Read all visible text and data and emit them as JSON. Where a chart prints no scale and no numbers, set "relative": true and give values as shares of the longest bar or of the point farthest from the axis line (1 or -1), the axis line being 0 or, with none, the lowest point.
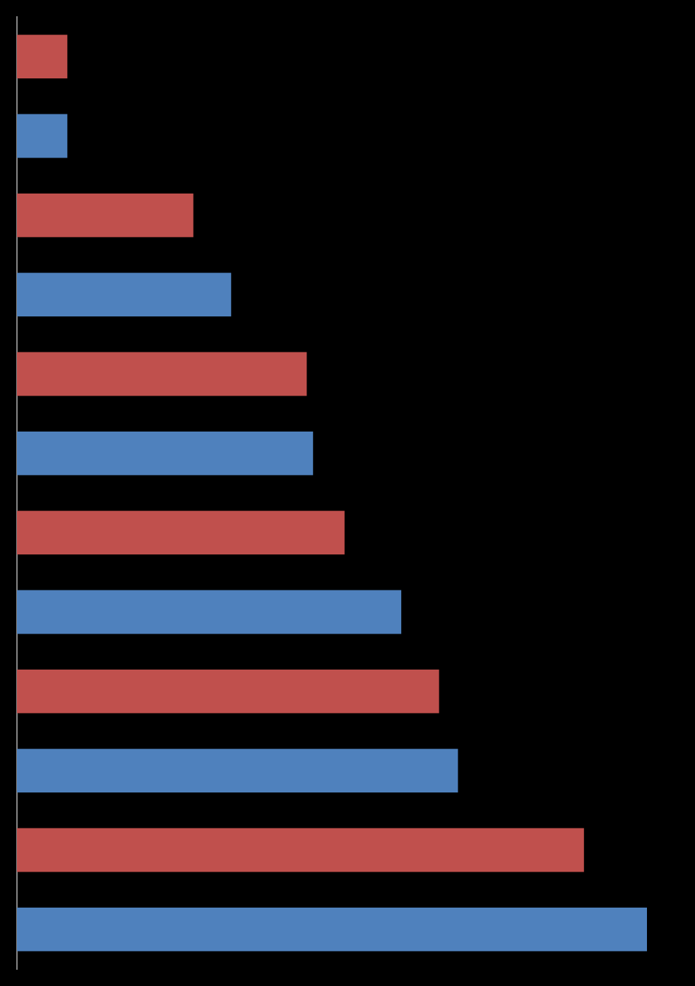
{
  "chart_data": {
    "type": "bar",
    "orientation": "horizontal",
    "relative": true,
    "categories": [
      null,
      null,
      null,
      null,
      null,
      null,
      null,
      null,
      null,
      null,
      null,
      null
    ],
    "values": [
      0.08,
      0.08,
      0.28,
      0.34,
      0.46,
      0.47,
      0.52,
      0.61,
      0.67,
      0.7,
      0.9,
      1
    ],
    "colors": [
      "#c0504d",
      "#4f81bd",
      "#c0504d",
      "#4f81bd",
      "#c0504d",
      "#4f81bd",
      "#c0504d",
      "#4f81bd",
      "#c0504d",
      "#4f81bd",
      "#c0504d",
      "#4f81bd"
    ],
    "legend": false
  }
}
